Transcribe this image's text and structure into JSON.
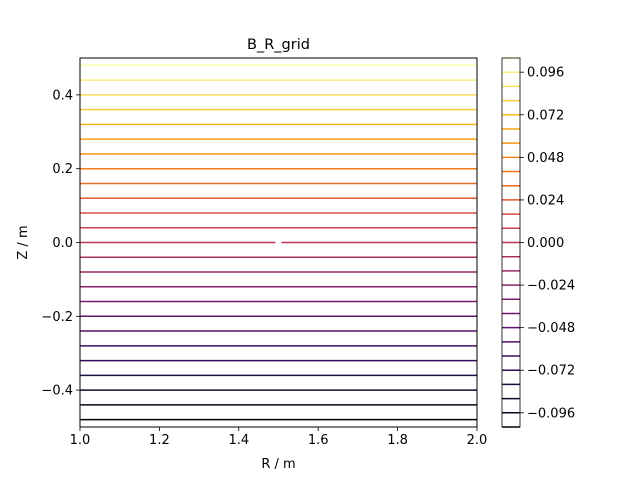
{
  "chart_data": {
    "type": "contour",
    "title": "B_R_grid",
    "xlabel": "R / m",
    "ylabel": "Z / m",
    "xlim": [
      1.0,
      2.0
    ],
    "ylim": [
      -0.5,
      0.5
    ],
    "x_ticks": [
      1.0,
      1.2,
      1.4,
      1.6,
      1.8,
      2.0
    ],
    "x_tick_labels": [
      "1.0",
      "1.2",
      "1.4",
      "1.6",
      "1.8",
      "2.0"
    ],
    "y_ticks": [
      -0.4,
      -0.2,
      0.0,
      0.2,
      0.4
    ],
    "y_tick_labels": [
      "−0.4",
      "−0.2",
      "0.0",
      "0.2",
      "0.4"
    ],
    "contour_levels": [
      -0.104,
      -0.096,
      -0.088,
      -0.08,
      -0.072,
      -0.064,
      -0.056,
      -0.048,
      -0.04,
      -0.032,
      -0.024,
      -0.016,
      -0.008,
      0.0,
      0.008,
      0.016,
      0.024,
      0.032,
      0.04,
      0.048,
      0.056,
      0.064,
      0.072,
      0.08,
      0.088,
      0.096,
      0.104
    ],
    "contour_z_positions": [
      -0.48,
      -0.44,
      -0.4,
      -0.36,
      -0.32,
      -0.28,
      -0.24,
      -0.2,
      -0.16,
      -0.12,
      -0.08,
      -0.04,
      0.0,
      0.04,
      0.08,
      0.12,
      0.16,
      0.2,
      0.24,
      0.28,
      0.32,
      0.36,
      0.4,
      0.44,
      0.48
    ],
    "zero_contour_gap_at_R": 1.5,
    "colormap": "inferno",
    "colorbar": {
      "vmin": -0.104,
      "vmax": 0.104,
      "ticks": [
        -0.096,
        -0.072,
        -0.048,
        -0.024,
        0.0,
        0.024,
        0.048,
        0.072,
        0.096
      ],
      "tick_labels": [
        "−0.096",
        "−0.072",
        "−0.048",
        "−0.024",
        "0.000",
        "0.024",
        "0.048",
        "0.072",
        "0.096"
      ]
    },
    "grid": false
  }
}
